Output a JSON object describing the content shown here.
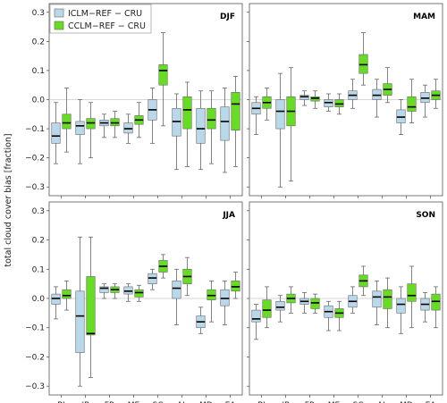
{
  "chart_data": {
    "type": "box",
    "ylabel": "total cloud cover bias [fraction]",
    "ylim": [
      -0.33,
      0.33
    ],
    "yticks": [
      -0.3,
      -0.2,
      -0.1,
      0.0,
      0.1,
      0.2,
      0.3
    ],
    "ytick_labels": [
      "−0.3",
      "−0.2",
      "−0.1",
      "0.0",
      "0.1",
      "0.2",
      "0.3"
    ],
    "zero_line": true,
    "categories": [
      "BI",
      "IP",
      "FR",
      "ME",
      "SC",
      "AL",
      "MD",
      "EA"
    ],
    "legend": {
      "placement": "top-left",
      "entries": [
        {
          "name": "ICLM−REF − CRU",
          "color": "#b9d8ea"
        },
        {
          "name": "CCLM−REF − CRU",
          "color": "#66dd22"
        }
      ]
    },
    "panels": [
      {
        "season": "DJF",
        "series": [
          {
            "name": "ICLM−REF − CRU",
            "boxes": [
              {
                "cat": "BI",
                "wlo": -0.22,
                "q1": -0.15,
                "med": -0.125,
                "q3": -0.08,
                "whi": -0.01
              },
              {
                "cat": "IP",
                "wlo": -0.22,
                "q1": -0.12,
                "med": -0.09,
                "q3": -0.075,
                "whi": 0.0
              },
              {
                "cat": "FR",
                "wlo": -0.13,
                "q1": -0.09,
                "med": -0.08,
                "q3": -0.07,
                "whi": -0.05
              },
              {
                "cat": "ME",
                "wlo": -0.15,
                "q1": -0.115,
                "med": -0.1,
                "q3": -0.08,
                "whi": -0.05
              },
              {
                "cat": "SC",
                "wlo": -0.15,
                "q1": -0.07,
                "med": -0.035,
                "q3": 0.0,
                "whi": 0.04
              },
              {
                "cat": "AL",
                "wlo": -0.24,
                "q1": -0.125,
                "med": -0.075,
                "q3": -0.03,
                "whi": 0.02
              },
              {
                "cat": "MD",
                "wlo": -0.24,
                "q1": -0.15,
                "med": -0.1,
                "q3": -0.03,
                "whi": 0.03
              },
              {
                "cat": "EA",
                "wlo": -0.25,
                "q1": -0.14,
                "med": -0.075,
                "q3": -0.025,
                "whi": 0.04
              }
            ]
          },
          {
            "name": "CCLM−REF − CRU",
            "boxes": [
              {
                "cat": "BI",
                "wlo": -0.18,
                "q1": -0.1,
                "med": -0.08,
                "q3": -0.05,
                "whi": 0.04
              },
              {
                "cat": "IP",
                "wlo": -0.2,
                "q1": -0.1,
                "med": -0.08,
                "q3": -0.065,
                "whi": -0.01
              },
              {
                "cat": "FR",
                "wlo": -0.13,
                "q1": -0.09,
                "med": -0.08,
                "q3": -0.065,
                "whi": -0.04
              },
              {
                "cat": "ME",
                "wlo": -0.13,
                "q1": -0.085,
                "med": -0.07,
                "q3": -0.055,
                "whi": -0.01
              },
              {
                "cat": "SC",
                "wlo": -0.09,
                "q1": 0.05,
                "med": 0.1,
                "q3": 0.12,
                "whi": 0.23
              },
              {
                "cat": "AL",
                "wlo": -0.23,
                "q1": -0.1,
                "med": -0.035,
                "q3": 0.01,
                "whi": 0.06
              },
              {
                "cat": "MD",
                "wlo": -0.22,
                "q1": -0.1,
                "med": -0.07,
                "q3": -0.03,
                "whi": 0.03
              },
              {
                "cat": "EA",
                "wlo": -0.23,
                "q1": -0.105,
                "med": -0.015,
                "q3": 0.025,
                "whi": 0.08
              }
            ]
          }
        ]
      },
      {
        "season": "MAM",
        "series": [
          {
            "name": "ICLM−REF − CRU",
            "boxes": [
              {
                "cat": "BI",
                "wlo": -0.12,
                "q1": -0.05,
                "med": -0.03,
                "q3": -0.01,
                "whi": 0.01
              },
              {
                "cat": "IP",
                "wlo": -0.3,
                "q1": -0.1,
                "med": -0.04,
                "q3": 0.0,
                "whi": 0.09
              },
              {
                "cat": "FR",
                "wlo": -0.02,
                "q1": 0.0,
                "med": 0.01,
                "q3": 0.015,
                "whi": 0.03
              },
              {
                "cat": "ME",
                "wlo": -0.04,
                "q1": -0.025,
                "med": -0.01,
                "q3": 0.0,
                "whi": 0.02
              },
              {
                "cat": "SC",
                "wlo": -0.03,
                "q1": 0.0,
                "med": 0.015,
                "q3": 0.03,
                "whi": 0.07
              },
              {
                "cat": "AL",
                "wlo": -0.06,
                "q1": 0.0,
                "med": 0.015,
                "q3": 0.035,
                "whi": 0.07
              },
              {
                "cat": "MD",
                "wlo": -0.12,
                "q1": -0.08,
                "med": -0.06,
                "q3": -0.035,
                "whi": 0.0
              },
              {
                "cat": "EA",
                "wlo": -0.06,
                "q1": -0.01,
                "med": 0.005,
                "q3": 0.025,
                "whi": 0.05
              }
            ]
          },
          {
            "name": "CCLM−REF − CRU",
            "boxes": [
              {
                "cat": "BI",
                "wlo": -0.07,
                "q1": -0.03,
                "med": -0.01,
                "q3": 0.01,
                "whi": 0.04
              },
              {
                "cat": "IP",
                "wlo": -0.28,
                "q1": -0.09,
                "med": -0.04,
                "q3": 0.01,
                "whi": 0.11
              },
              {
                "cat": "FR",
                "wlo": -0.03,
                "q1": -0.005,
                "med": 0.005,
                "q3": 0.01,
                "whi": 0.03
              },
              {
                "cat": "ME",
                "wlo": -0.05,
                "q1": -0.025,
                "med": -0.015,
                "q3": 0.0,
                "whi": 0.02
              },
              {
                "cat": "SC",
                "wlo": 0.05,
                "q1": 0.09,
                "med": 0.12,
                "q3": 0.155,
                "whi": 0.23
              },
              {
                "cat": "AL",
                "wlo": -0.01,
                "q1": 0.015,
                "med": 0.035,
                "q3": 0.055,
                "whi": 0.11
              },
              {
                "cat": "MD",
                "wlo": -0.08,
                "q1": -0.04,
                "med": -0.025,
                "q3": 0.01,
                "whi": 0.07
              },
              {
                "cat": "EA",
                "wlo": -0.03,
                "q1": 0.0,
                "med": 0.015,
                "q3": 0.03,
                "whi": 0.07
              }
            ]
          }
        ]
      },
      {
        "season": "JJA",
        "series": [
          {
            "name": "ICLM−REF − CRU",
            "boxes": [
              {
                "cat": "BI",
                "wlo": -0.07,
                "q1": -0.02,
                "med": 0.0,
                "q3": 0.015,
                "whi": 0.04
              },
              {
                "cat": "IP",
                "wlo": -0.3,
                "q1": -0.185,
                "med": -0.06,
                "q3": 0.025,
                "whi": 0.21
              },
              {
                "cat": "FR",
                "wlo": 0.0,
                "q1": 0.02,
                "med": 0.035,
                "q3": 0.04,
                "whi": 0.05
              },
              {
                "cat": "ME",
                "wlo": -0.01,
                "q1": 0.015,
                "med": 0.025,
                "q3": 0.04,
                "whi": 0.05
              },
              {
                "cat": "SC",
                "wlo": 0.03,
                "q1": 0.05,
                "med": 0.07,
                "q3": 0.085,
                "whi": 0.1
              },
              {
                "cat": "AL",
                "wlo": -0.09,
                "q1": 0.0,
                "med": 0.035,
                "q3": 0.06,
                "whi": 0.1
              },
              {
                "cat": "MD",
                "wlo": -0.12,
                "q1": -0.1,
                "med": -0.08,
                "q3": -0.06,
                "whi": -0.03
              },
              {
                "cat": "EA",
                "wlo": -0.09,
                "q1": -0.025,
                "med": 0.0,
                "q3": 0.03,
                "whi": 0.06
              }
            ]
          },
          {
            "name": "CCLM−REF − CRU",
            "boxes": [
              {
                "cat": "BI",
                "wlo": -0.04,
                "q1": 0.0,
                "med": 0.01,
                "q3": 0.03,
                "whi": 0.06
              },
              {
                "cat": "IP",
                "wlo": -0.27,
                "q1": -0.125,
                "med": -0.12,
                "q3": 0.075,
                "whi": 0.21
              },
              {
                "cat": "FR",
                "wlo": 0.0,
                "q1": 0.02,
                "med": 0.03,
                "q3": 0.04,
                "whi": 0.05
              },
              {
                "cat": "ME",
                "wlo": -0.01,
                "q1": 0.005,
                "med": 0.02,
                "q3": 0.03,
                "whi": 0.045
              },
              {
                "cat": "SC",
                "wlo": 0.07,
                "q1": 0.09,
                "med": 0.11,
                "q3": 0.13,
                "whi": 0.15
              },
              {
                "cat": "AL",
                "wlo": 0.01,
                "q1": 0.05,
                "med": 0.075,
                "q3": 0.1,
                "whi": 0.14
              },
              {
                "cat": "MD",
                "wlo": -0.08,
                "q1": -0.005,
                "med": 0.01,
                "q3": 0.03,
                "whi": 0.06
              },
              {
                "cat": "EA",
                "wlo": 0.0,
                "q1": 0.025,
                "med": 0.04,
                "q3": 0.06,
                "whi": 0.09
              }
            ]
          }
        ]
      },
      {
        "season": "SON",
        "series": [
          {
            "name": "ICLM−REF − CRU",
            "boxes": [
              {
                "cat": "BI",
                "wlo": -0.14,
                "q1": -0.08,
                "med": -0.07,
                "q3": -0.04,
                "whi": -0.02
              },
              {
                "cat": "IP",
                "wlo": -0.08,
                "q1": -0.04,
                "med": -0.03,
                "q3": -0.01,
                "whi": 0.01
              },
              {
                "cat": "FR",
                "wlo": -0.05,
                "q1": -0.02,
                "med": -0.01,
                "q3": 0.0,
                "whi": 0.02
              },
              {
                "cat": "ME",
                "wlo": -0.11,
                "q1": -0.065,
                "med": -0.045,
                "q3": -0.025,
                "whi": -0.01
              },
              {
                "cat": "SC",
                "wlo": -0.05,
                "q1": -0.03,
                "med": -0.01,
                "q3": 0.01,
                "whi": 0.04
              },
              {
                "cat": "AL",
                "wlo": -0.09,
                "q1": -0.03,
                "med": 0.005,
                "q3": 0.025,
                "whi": 0.06
              },
              {
                "cat": "MD",
                "wlo": -0.12,
                "q1": -0.05,
                "med": -0.02,
                "q3": 0.0,
                "whi": 0.04
              },
              {
                "cat": "EA",
                "wlo": -0.08,
                "q1": -0.04,
                "med": -0.02,
                "q3": 0.0,
                "whi": 0.02
              }
            ]
          },
          {
            "name": "CCLM−REF − CRU",
            "boxes": [
              {
                "cat": "BI",
                "wlo": -0.1,
                "q1": -0.065,
                "med": -0.04,
                "q3": -0.005,
                "whi": 0.04
              },
              {
                "cat": "IP",
                "wlo": -0.05,
                "q1": -0.015,
                "med": 0.0,
                "q3": 0.015,
                "whi": 0.04
              },
              {
                "cat": "FR",
                "wlo": -0.05,
                "q1": -0.035,
                "med": -0.015,
                "q3": 0.0,
                "whi": 0.015
              },
              {
                "cat": "ME",
                "wlo": -0.11,
                "q1": -0.065,
                "med": -0.05,
                "q3": -0.035,
                "whi": -0.01
              },
              {
                "cat": "SC",
                "wlo": 0.01,
                "q1": 0.04,
                "med": 0.06,
                "q3": 0.08,
                "whi": 0.11
              },
              {
                "cat": "AL",
                "wlo": -0.1,
                "q1": -0.035,
                "med": 0.005,
                "q3": 0.03,
                "whi": 0.07
              },
              {
                "cat": "MD",
                "wlo": -0.1,
                "q1": -0.01,
                "med": 0.01,
                "q3": 0.05,
                "whi": 0.11
              },
              {
                "cat": "EA",
                "wlo": -0.1,
                "q1": -0.04,
                "med": -0.01,
                "q3": 0.015,
                "whi": 0.04
              }
            ]
          }
        ]
      }
    ]
  }
}
